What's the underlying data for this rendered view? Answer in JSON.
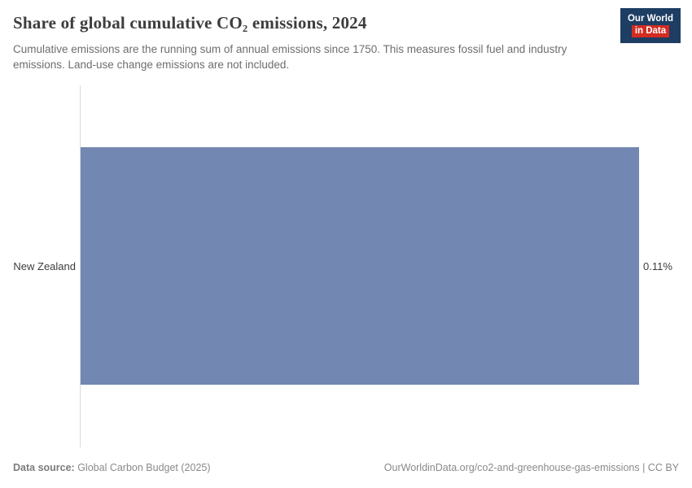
{
  "header": {
    "title": "Share of global cumulative CO₂ emissions, 2024",
    "subtitle": "Cumulative emissions are the running sum of annual emissions since 1750. This measures fossil fuel and industry emissions. Land-use change emissions are not included.",
    "logo": {
      "line1": "Our World",
      "line2": "in Data",
      "bg_color": "#1d3d63",
      "accent_color": "#d42b21"
    }
  },
  "chart_data": {
    "type": "bar",
    "orientation": "horizontal",
    "title": "Share of global cumulative CO₂ emissions, 2024",
    "categories": [
      "New Zealand"
    ],
    "values": [
      0.11
    ],
    "value_labels": [
      "0.11%"
    ],
    "unit": "%",
    "xlim": [
      0,
      0.11
    ],
    "xlabel": "",
    "ylabel": "",
    "grid": false,
    "legend": "none",
    "bar_color": "#7287b1"
  },
  "footer": {
    "source_label": "Data source:",
    "source_value": " Global Carbon Budget (2025)",
    "link": "OurWorldinData.org/co2-and-greenhouse-gas-emissions | CC BY"
  }
}
